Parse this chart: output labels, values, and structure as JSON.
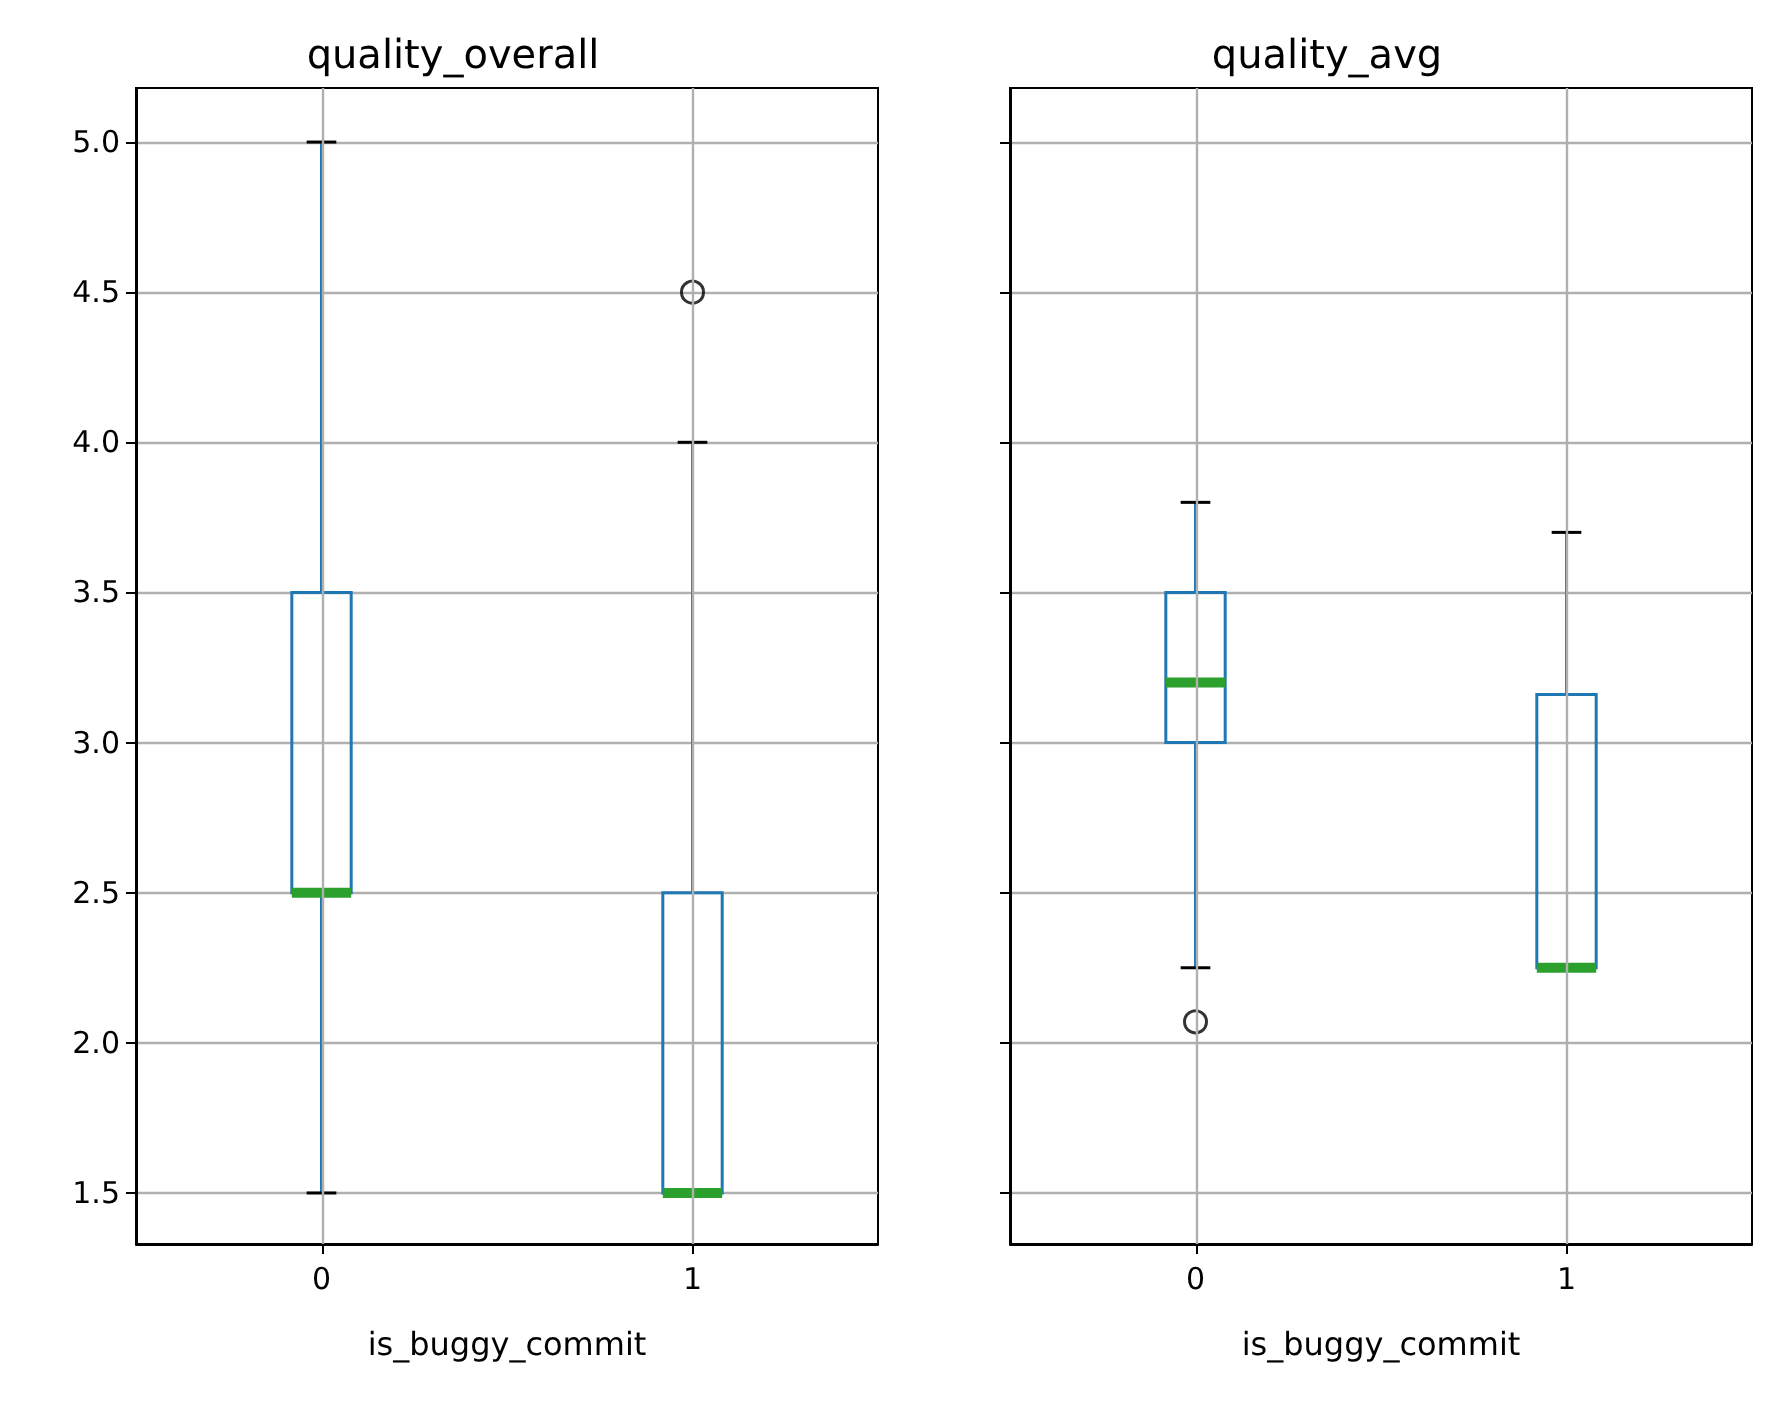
{
  "chart_data": [
    {
      "type": "box",
      "title": "quality_overall",
      "xlabel": "is_buggy_commit",
      "categories": [
        "0",
        "1"
      ],
      "color": "#1f77b4",
      "grid": true,
      "ylim": [
        1.33,
        5.18
      ],
      "yticks": [
        {
          "value": 1.5,
          "label": "1.5"
        },
        {
          "value": 2,
          "label": "2.0"
        },
        {
          "value": 2.5,
          "label": "2.5"
        },
        {
          "value": 3,
          "label": "3.0"
        },
        {
          "value": 3.5,
          "label": "3.5"
        },
        {
          "value": 4,
          "label": "4.0"
        },
        {
          "value": 4.5,
          "label": "4.5"
        },
        {
          "value": 5,
          "label": "5.0"
        }
      ],
      "boxes": [
        {
          "low": 1.5,
          "q1": 2.5,
          "median": 2.5,
          "q3": 3.5,
          "high": 5.0
        },
        {
          "low": 1.5,
          "q1": 1.5,
          "median": 1.5,
          "q3": 2.5,
          "high": 4.0,
          "outliers": [
            4.5
          ]
        }
      ]
    },
    {
      "type": "box",
      "title": "quality_avg",
      "xlabel": "is_buggy_commit",
      "categories": [
        "0",
        "1"
      ],
      "color": "#1f77b4",
      "grid": true,
      "tick_labels": "x",
      "ylim": [
        1.33,
        5.18
      ],
      "yticks": [
        {
          "value": 1.5,
          "label": null
        },
        {
          "value": 2,
          "label": null
        },
        {
          "value": 2.5,
          "label": null
        },
        {
          "value": 3,
          "label": null
        },
        {
          "value": 3.5,
          "label": null
        },
        {
          "value": 4,
          "label": null
        },
        {
          "value": 4.5,
          "label": null
        },
        {
          "value": 5,
          "label": null
        }
      ],
      "boxes": [
        {
          "low": 2.25,
          "q1": 3.0,
          "median": 3.2,
          "q3": 3.5,
          "high": 3.8,
          "outliers": [
            2.07
          ]
        },
        {
          "low": 2.25,
          "q1": 2.25,
          "median": 2.25,
          "q3": 3.16,
          "high": 3.7
        }
      ]
    }
  ]
}
